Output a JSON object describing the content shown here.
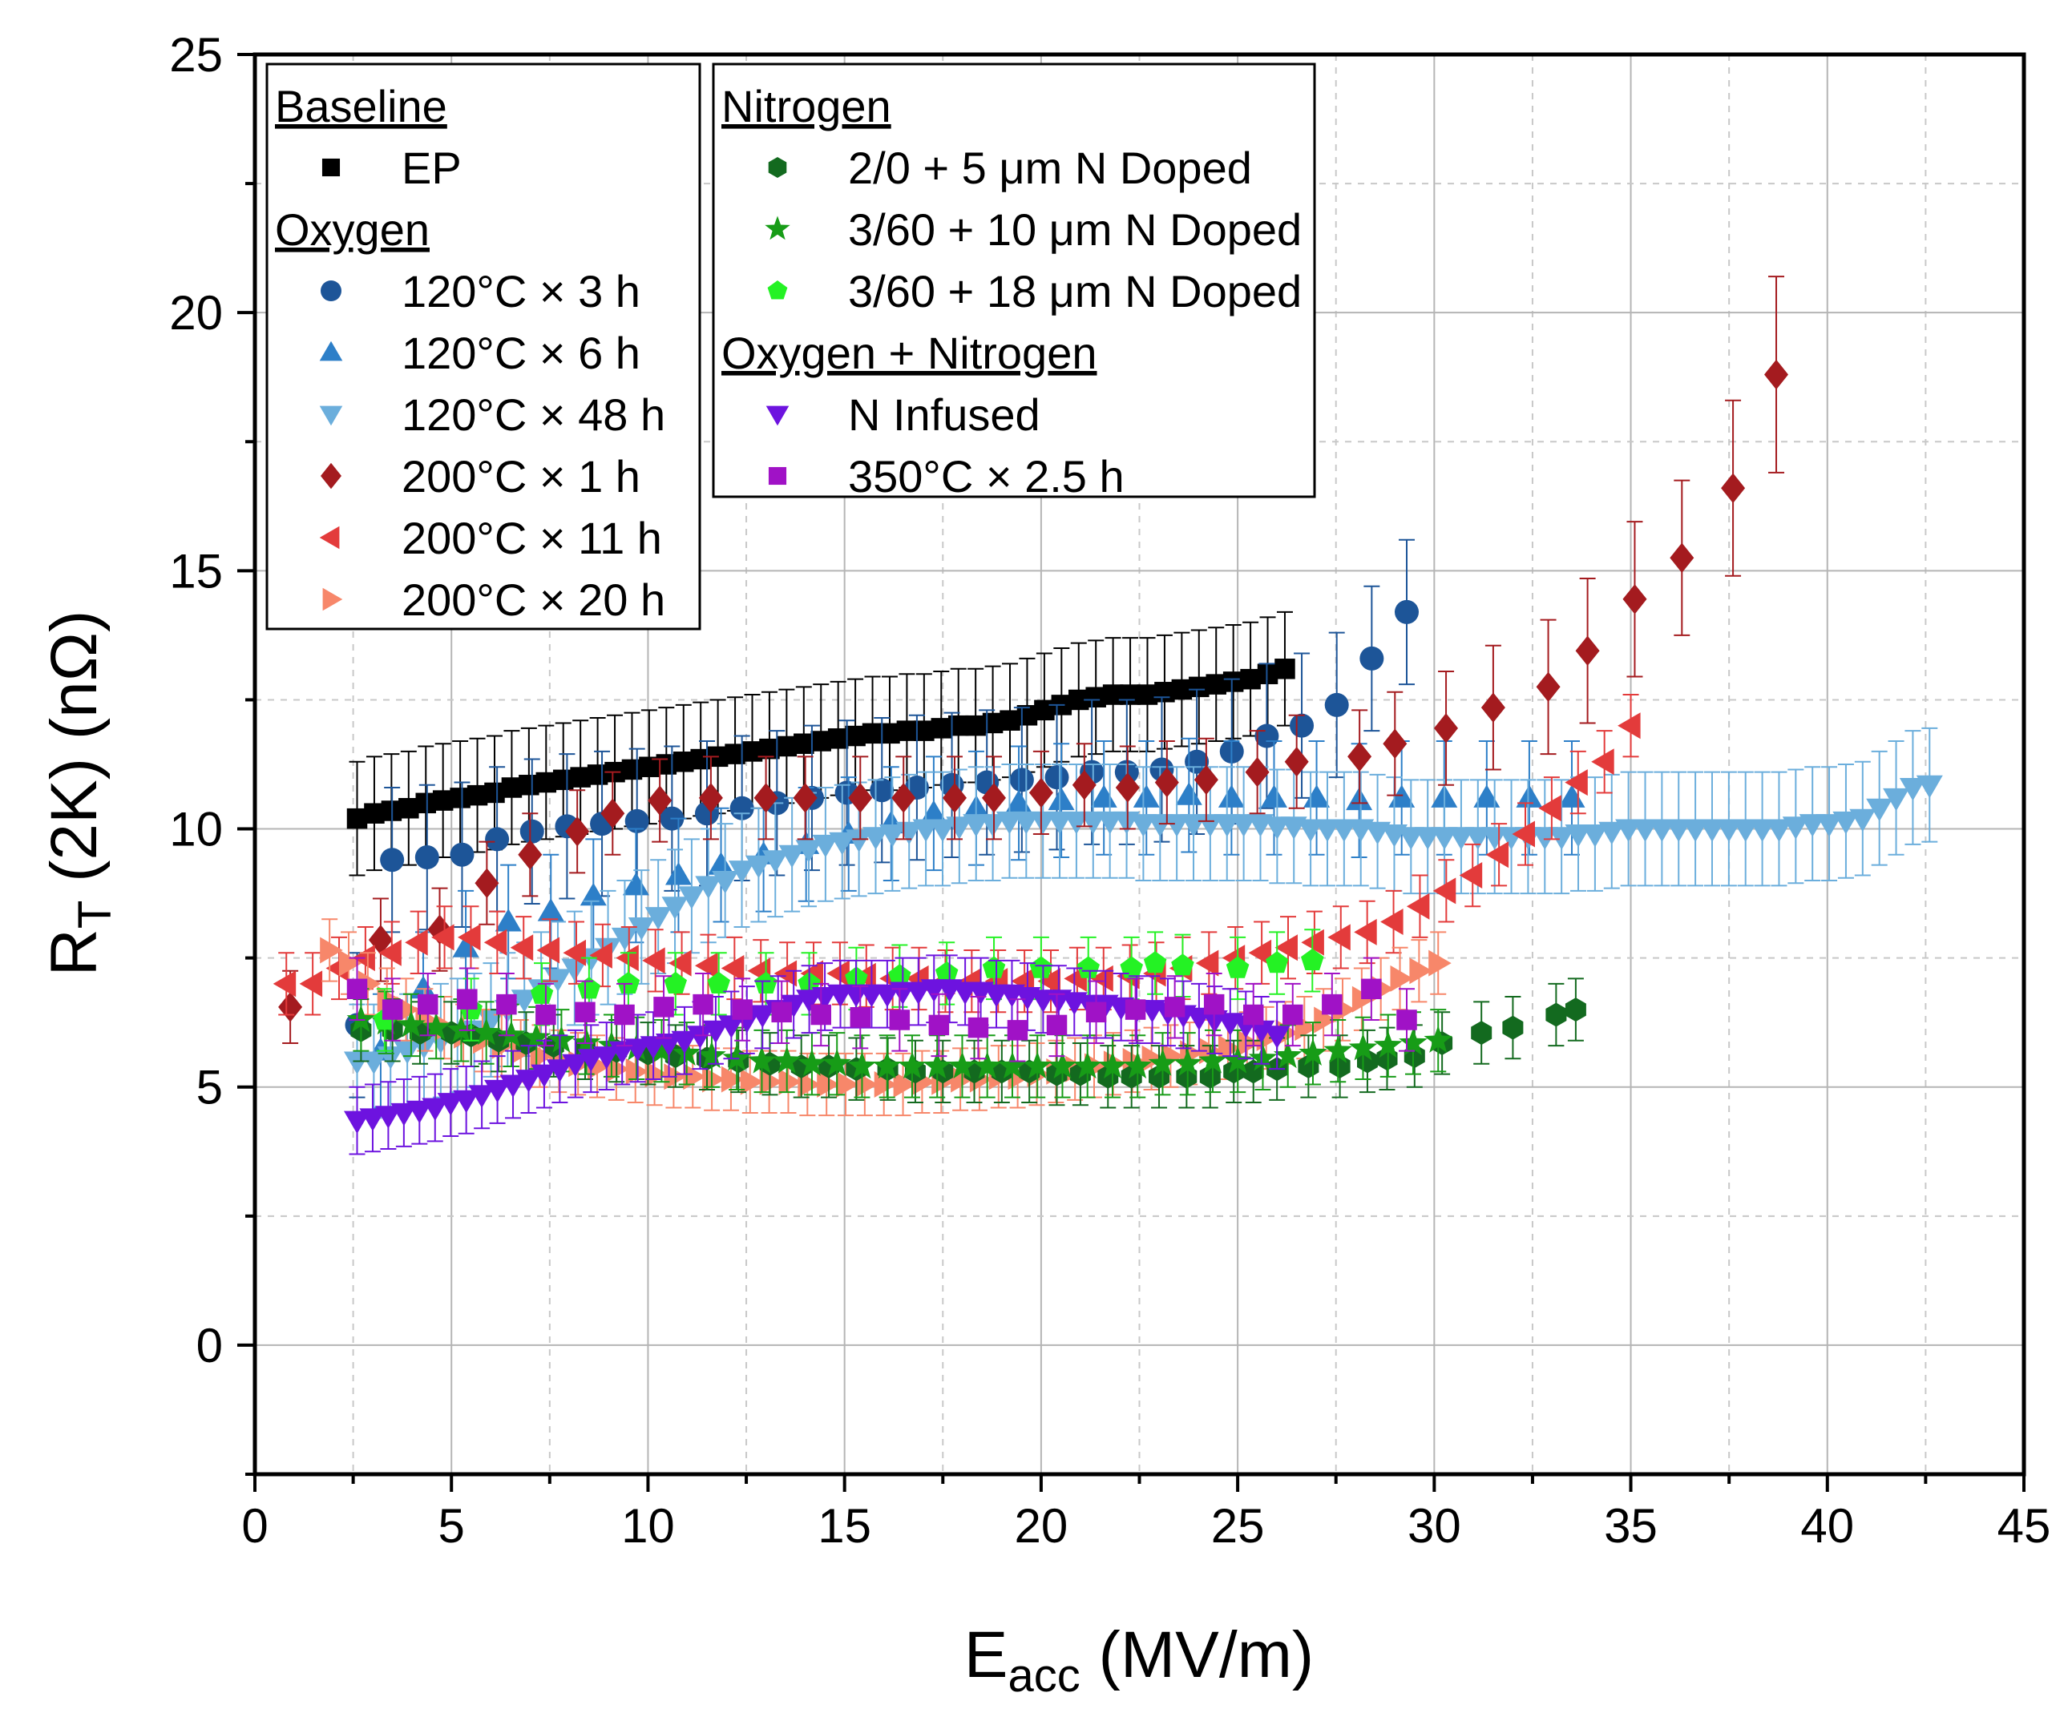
{
  "chart_data": {
    "type": "scatter",
    "xlabel": "E",
    "xlabel_sub": "acc",
    "xlabel_unit": " (MV/m)",
    "ylabel": "R",
    "ylabel_sub": "T",
    "ylabel_unit": " (2K) (nΩ)",
    "xlim": [
      0,
      45
    ],
    "ylim": [
      -2.5,
      25
    ],
    "xticks": [
      "0",
      "5",
      "10",
      "15",
      "20",
      "25",
      "30",
      "35",
      "40",
      "45"
    ],
    "yticks": [
      "0",
      "5",
      "10",
      "15",
      "20",
      "25"
    ],
    "grid": true,
    "legend_placement": "top-left",
    "legend_groups": [
      {
        "heading": "Baseline",
        "series": [
          0
        ]
      },
      {
        "heading": "Oxygen",
        "series": [
          1,
          2,
          3,
          4,
          5,
          6
        ]
      },
      {
        "heading": "Nitrogen",
        "series": [
          7,
          8,
          9
        ]
      },
      {
        "heading": "Oxygen + Nitrogen",
        "series": [
          10,
          11
        ]
      }
    ],
    "series": [
      {
        "name": "EP",
        "color": "#000000",
        "marker": "square",
        "x0": 2.6,
        "x1": 26.2,
        "y": [
          10.2,
          10.3,
          10.35,
          10.4,
          10.5,
          10.55,
          10.6,
          10.65,
          10.7,
          10.8,
          10.85,
          10.9,
          10.95,
          11.0,
          11.05,
          11.1,
          11.15,
          11.2,
          11.25,
          11.3,
          11.35,
          11.4,
          11.45,
          11.5,
          11.55,
          11.6,
          11.65,
          11.7,
          11.75,
          11.8,
          11.85,
          11.85,
          11.9,
          11.9,
          11.95,
          12.0,
          12.0,
          12.05,
          12.1,
          12.2,
          12.3,
          12.4,
          12.5,
          12.55,
          12.6,
          12.6,
          12.6,
          12.65,
          12.7,
          12.75,
          12.8,
          12.85,
          12.9,
          13.0,
          13.1
        ],
        "err": 1.1
      },
      {
        "name": "120°C × 3 h",
        "color": "#1d5598",
        "marker": "circle",
        "x0": 2.6,
        "x1": 29.3,
        "y": [
          6.2,
          9.4,
          9.45,
          9.5,
          9.8,
          9.95,
          10.05,
          10.1,
          10.15,
          10.2,
          10.3,
          10.4,
          10.5,
          10.6,
          10.7,
          10.75,
          10.8,
          10.85,
          10.9,
          10.95,
          11.0,
          11.1,
          11.1,
          11.15,
          11.3,
          11.5,
          11.8,
          12.0,
          12.4,
          13.3,
          14.2
        ],
        "err": 1.4
      },
      {
        "name": "120°C × 6 h",
        "color": "#2d7fc8",
        "marker": "triangle-up",
        "x0": 3.2,
        "x1": 33.5,
        "y": [
          5.7,
          6.9,
          7.7,
          8.2,
          8.4,
          8.7,
          8.9,
          9.1,
          9.3,
          9.5,
          9.7,
          9.9,
          10.1,
          10.3,
          10.4,
          10.5,
          10.55,
          10.6,
          10.6,
          10.65,
          10.6,
          10.6,
          10.6,
          10.55,
          10.6,
          10.6,
          10.6,
          10.6,
          10.6
        ],
        "err": 1.1
      },
      {
        "name": "120°C × 48 h",
        "color": "#6baedc",
        "marker": "triangle-down",
        "x0": 2.6,
        "x1": 42.6,
        "y": [
          5.5,
          5.5,
          5.6,
          5.7,
          5.8,
          5.9,
          6.0,
          6.1,
          6.3,
          6.5,
          6.7,
          6.9,
          7.1,
          7.3,
          7.5,
          7.7,
          7.9,
          8.1,
          8.3,
          8.5,
          8.7,
          8.9,
          9.0,
          9.2,
          9.3,
          9.4,
          9.5,
          9.6,
          9.7,
          9.75,
          9.8,
          9.85,
          9.9,
          9.95,
          10.0,
          10.0,
          10.05,
          10.1,
          10.1,
          10.15,
          10.15,
          10.15,
          10.15,
          10.15,
          10.15,
          10.15,
          10.15,
          10.1,
          10.1,
          10.1,
          10.1,
          10.1,
          10.1,
          10.1,
          10.1,
          10.05,
          10.05,
          10.0,
          10.0,
          10.0,
          10.0,
          9.95,
          9.9,
          9.85,
          9.85,
          9.85,
          9.85,
          9.85,
          9.85,
          9.85,
          9.85,
          9.85,
          9.85,
          9.9,
          9.9,
          9.95,
          10.0,
          10.0,
          10.0,
          10.0,
          10.0,
          10.0,
          10.0,
          10.0,
          10.0,
          10.0,
          10.05,
          10.1,
          10.1,
          10.15,
          10.2,
          10.4,
          10.6,
          10.8,
          10.85
        ],
        "err": 1.1
      },
      {
        "name": "200°C × 1 h",
        "color": "#a41b1f",
        "marker": "diamond",
        "points": [
          [
            0.9,
            6.55
          ],
          [
            3.2,
            7.85
          ],
          [
            4.7,
            8.05
          ],
          [
            5.9,
            8.95
          ],
          [
            7.0,
            9.5
          ],
          [
            8.2,
            9.95
          ],
          [
            9.1,
            10.3
          ],
          [
            10.3,
            10.55
          ],
          [
            11.6,
            10.6
          ],
          [
            13.0,
            10.6
          ],
          [
            14.0,
            10.6
          ],
          [
            15.4,
            10.6
          ],
          [
            16.5,
            10.6
          ],
          [
            17.8,
            10.6
          ],
          [
            18.8,
            10.6
          ],
          [
            20.0,
            10.7
          ],
          [
            21.1,
            10.85
          ],
          [
            22.2,
            10.8
          ],
          [
            23.2,
            10.9
          ],
          [
            24.2,
            10.95
          ],
          [
            25.5,
            11.1
          ],
          [
            26.5,
            11.3
          ],
          [
            28.1,
            11.4
          ],
          [
            29.0,
            11.65
          ],
          [
            30.3,
            11.95
          ],
          [
            31.5,
            12.35
          ],
          [
            32.9,
            12.75
          ],
          [
            33.9,
            13.45
          ],
          [
            35.1,
            14.45
          ],
          [
            36.3,
            15.25
          ],
          [
            37.6,
            16.6
          ],
          [
            38.7,
            18.8
          ]
        ],
        "errs": [
          0.7,
          0.8,
          0.8,
          0.8,
          0.8,
          0.8,
          0.8,
          0.8,
          0.8,
          0.8,
          0.8,
          0.8,
          0.8,
          0.8,
          0.8,
          0.8,
          0.8,
          0.8,
          0.8,
          0.8,
          0.8,
          0.9,
          0.9,
          1.0,
          1.1,
          1.2,
          1.3,
          1.4,
          1.5,
          1.5,
          1.7,
          1.9
        ]
      },
      {
        "name": "200°C × 11 h",
        "color": "#e33b3b",
        "marker": "triangle-left",
        "x0": 0.8,
        "x1": 35.0,
        "y": [
          7.0,
          7.0,
          7.3,
          7.5,
          7.6,
          7.8,
          7.9,
          7.9,
          7.8,
          7.7,
          7.65,
          7.6,
          7.55,
          7.5,
          7.45,
          7.4,
          7.35,
          7.3,
          7.25,
          7.2,
          7.2,
          7.2,
          7.15,
          7.1,
          7.1,
          7.05,
          7.05,
          7.05,
          7.05,
          7.05,
          7.1,
          7.1,
          7.15,
          7.2,
          7.3,
          7.4,
          7.5,
          7.6,
          7.7,
          7.8,
          7.9,
          8.0,
          8.2,
          8.5,
          8.8,
          9.1,
          9.5,
          9.9,
          10.4,
          10.9,
          11.3,
          12.0
        ],
        "err": 0.6
      },
      {
        "name": "200°C × 20 h",
        "color": "#f7876a",
        "marker": "triangle-right",
        "x0": 1.9,
        "x1": 30.1,
        "y": [
          7.65,
          7.4,
          7.0,
          6.7,
          6.5,
          6.3,
          6.15,
          6.0,
          5.9,
          5.8,
          5.7,
          5.6,
          5.5,
          5.45,
          5.4,
          5.35,
          5.3,
          5.25,
          5.2,
          5.2,
          5.15,
          5.15,
          5.1,
          5.1,
          5.1,
          5.05,
          5.05,
          5.05,
          5.05,
          5.05,
          5.05,
          5.1,
          5.1,
          5.15,
          5.15,
          5.2,
          5.2,
          5.25,
          5.3,
          5.35,
          5.4,
          5.45,
          5.5,
          5.55,
          5.6,
          5.65,
          5.7,
          5.75,
          5.85,
          5.95,
          6.05,
          6.15,
          6.3,
          6.5,
          6.7,
          6.9,
          7.1,
          7.25,
          7.4
        ],
        "err": 0.6
      },
      {
        "name": "2/0 + 5 μm N Doped",
        "color": "#136a1f",
        "marker": "hexagon",
        "points": [
          [
            2.7,
            6.1
          ],
          [
            3.5,
            6.1
          ],
          [
            4.2,
            6.05
          ],
          [
            5.0,
            6.05
          ],
          [
            5.5,
            6.0
          ],
          [
            6.2,
            5.9
          ],
          [
            6.9,
            5.85
          ],
          [
            7.6,
            5.8
          ],
          [
            8.4,
            5.75
          ],
          [
            9.2,
            5.7
          ],
          [
            10.0,
            5.65
          ],
          [
            10.7,
            5.6
          ],
          [
            11.5,
            5.55
          ],
          [
            12.3,
            5.5
          ],
          [
            13.1,
            5.45
          ],
          [
            13.9,
            5.4
          ],
          [
            14.6,
            5.4
          ],
          [
            15.3,
            5.35
          ],
          [
            16.1,
            5.35
          ],
          [
            16.8,
            5.3
          ],
          [
            17.5,
            5.3
          ],
          [
            18.3,
            5.3
          ],
          [
            19.0,
            5.3
          ],
          [
            19.7,
            5.3
          ],
          [
            20.4,
            5.25
          ],
          [
            21.0,
            5.25
          ],
          [
            21.7,
            5.2
          ],
          [
            22.3,
            5.2
          ],
          [
            23.0,
            5.2
          ],
          [
            23.7,
            5.2
          ],
          [
            24.3,
            5.2
          ],
          [
            24.9,
            5.3
          ],
          [
            25.4,
            5.3
          ],
          [
            26.0,
            5.35
          ],
          [
            26.8,
            5.4
          ],
          [
            27.6,
            5.4
          ],
          [
            28.3,
            5.5
          ],
          [
            28.8,
            5.55
          ],
          [
            29.5,
            5.6
          ],
          [
            30.2,
            5.85
          ],
          [
            31.2,
            6.05
          ],
          [
            32.0,
            6.15
          ],
          [
            33.1,
            6.4
          ],
          [
            33.6,
            6.5
          ]
        ],
        "errs": [
          0.6
        ]
      },
      {
        "name": "3/60 + 10 μm N Doped",
        "color": "#179c17",
        "marker": "star",
        "x0": 2.7,
        "x1": 30.1,
        "y": [
          6.3,
          6.25,
          6.2,
          6.15,
          6.1,
          6.05,
          6.0,
          5.95,
          5.9,
          5.85,
          5.8,
          5.75,
          5.7,
          5.65,
          5.6,
          5.55,
          5.5,
          5.5,
          5.45,
          5.45,
          5.4,
          5.4,
          5.4,
          5.4,
          5.4,
          5.4,
          5.4,
          5.4,
          5.4,
          5.4,
          5.4,
          5.4,
          5.45,
          5.45,
          5.5,
          5.5,
          5.55,
          5.6,
          5.65,
          5.7,
          5.75,
          5.8,
          5.85,
          5.9
        ],
        "err": 0.6
      },
      {
        "name": "3/60 + 18 μm N Doped",
        "color": "#24f224",
        "marker": "pentagon",
        "points": [
          [
            3.3,
            6.3
          ],
          [
            5.5,
            6.5
          ],
          [
            7.3,
            6.8
          ],
          [
            8.5,
            6.9
          ],
          [
            9.5,
            7.0
          ],
          [
            10.7,
            7.0
          ],
          [
            11.8,
            7.0
          ],
          [
            13.0,
            7.0
          ],
          [
            14.1,
            7.0
          ],
          [
            15.3,
            7.1
          ],
          [
            16.4,
            7.15
          ],
          [
            17.6,
            7.2
          ],
          [
            18.8,
            7.3
          ],
          [
            20.0,
            7.3
          ],
          [
            21.2,
            7.3
          ],
          [
            22.3,
            7.3
          ],
          [
            22.9,
            7.4
          ],
          [
            23.6,
            7.35
          ],
          [
            25.0,
            7.3
          ],
          [
            26.0,
            7.4
          ],
          [
            26.9,
            7.45
          ]
        ],
        "errs": [
          0.6
        ]
      },
      {
        "name": "N Infused",
        "color": "#6d13df",
        "marker": "triangle-down",
        "x0": 2.6,
        "x1": 26.0,
        "y": [
          4.35,
          4.4,
          4.45,
          4.5,
          4.55,
          4.6,
          4.7,
          4.75,
          4.85,
          4.95,
          5.05,
          5.15,
          5.25,
          5.35,
          5.45,
          5.55,
          5.6,
          5.7,
          5.75,
          5.8,
          5.85,
          5.9,
          6.0,
          6.1,
          6.2,
          6.3,
          6.4,
          6.5,
          6.6,
          6.7,
          6.75,
          6.8,
          6.8,
          6.8,
          6.8,
          6.85,
          6.85,
          6.9,
          6.9,
          6.85,
          6.85,
          6.8,
          6.8,
          6.75,
          6.7,
          6.7,
          6.65,
          6.6,
          6.6,
          6.55,
          6.5,
          6.5,
          6.45,
          6.4,
          6.35,
          6.3,
          6.25,
          6.2,
          6.1,
          6.0
        ],
        "err": 0.65
      },
      {
        "name": "350°C × 2.5 h",
        "color": "#a012c6",
        "marker": "square",
        "points": [
          [
            2.6,
            6.9
          ],
          [
            3.5,
            6.5
          ],
          [
            4.4,
            6.6
          ],
          [
            5.4,
            6.7
          ],
          [
            6.4,
            6.6
          ],
          [
            7.4,
            6.4
          ],
          [
            8.4,
            6.45
          ],
          [
            9.4,
            6.4
          ],
          [
            10.4,
            6.55
          ],
          [
            11.4,
            6.6
          ],
          [
            12.4,
            6.5
          ],
          [
            13.4,
            6.45
          ],
          [
            14.4,
            6.4
          ],
          [
            15.4,
            6.35
          ],
          [
            16.4,
            6.3
          ],
          [
            17.4,
            6.2
          ],
          [
            18.4,
            6.15
          ],
          [
            19.4,
            6.1
          ],
          [
            20.4,
            6.2
          ],
          [
            21.4,
            6.45
          ],
          [
            22.4,
            6.5
          ],
          [
            23.4,
            6.55
          ],
          [
            24.4,
            6.6
          ],
          [
            25.4,
            6.4
          ],
          [
            26.4,
            6.4
          ],
          [
            27.4,
            6.6
          ],
          [
            28.4,
            6.9
          ],
          [
            29.3,
            6.3
          ]
        ],
        "errs": [
          0.6
        ]
      }
    ]
  }
}
